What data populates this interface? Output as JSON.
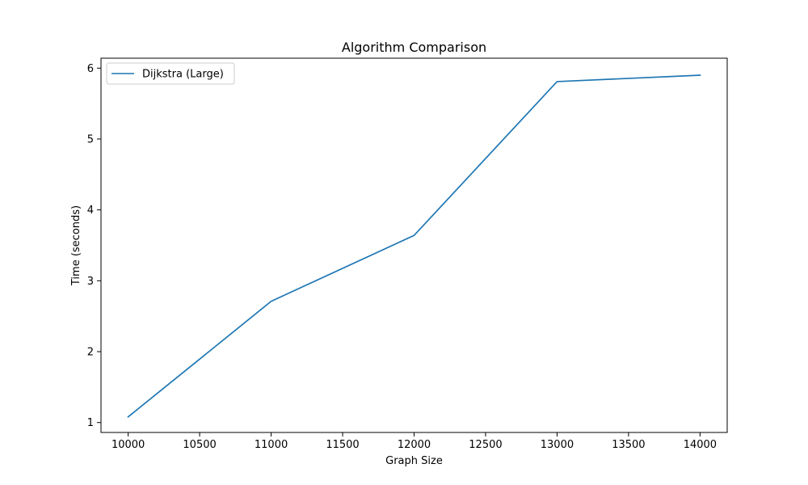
{
  "chart_data": {
    "type": "line",
    "title": "Algorithm Comparison",
    "xlabel": "Graph Size",
    "ylabel": "Time (seconds)",
    "xlim": [
      9810,
      14190
    ],
    "ylim": [
      0.86,
      6.14
    ],
    "xticks": [
      10000,
      10500,
      11000,
      11500,
      12000,
      12500,
      13000,
      13500,
      14000
    ],
    "yticks": [
      1,
      2,
      3,
      4,
      5,
      6
    ],
    "grid": false,
    "legend_position": "top-left",
    "series": [
      {
        "name": "Dijkstra (Large)",
        "color": "#1f77b4",
        "x": [
          10000,
          11000,
          12000,
          13000,
          14000
        ],
        "y": [
          1.08,
          2.71,
          3.64,
          5.81,
          5.9
        ]
      }
    ]
  }
}
